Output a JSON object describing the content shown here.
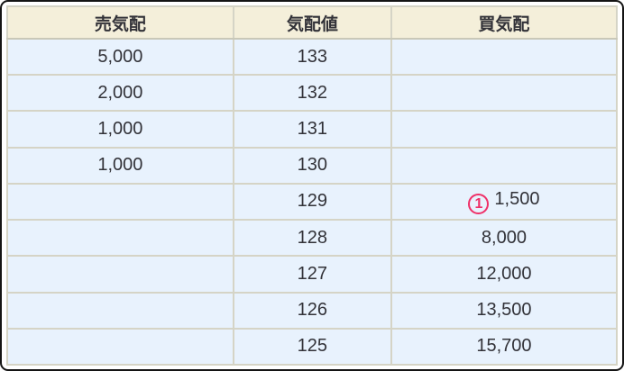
{
  "table": {
    "columns": [
      {
        "id": "sell",
        "label": "売気配"
      },
      {
        "id": "price",
        "label": "気配値"
      },
      {
        "id": "buy",
        "label": "買気配"
      }
    ],
    "rows": [
      {
        "sell": "5,000",
        "price": "133",
        "buy": ""
      },
      {
        "sell": "2,000",
        "price": "132",
        "buy": ""
      },
      {
        "sell": "1,000",
        "price": "131",
        "buy": ""
      },
      {
        "sell": "1,000",
        "price": "130",
        "buy": ""
      },
      {
        "sell": "",
        "price": "129",
        "buy": "1,500",
        "buy_badge": "1"
      },
      {
        "sell": "",
        "price": "128",
        "buy": "8,000"
      },
      {
        "sell": "",
        "price": "127",
        "buy": "12,000"
      },
      {
        "sell": "",
        "price": "126",
        "buy": "13,500"
      },
      {
        "sell": "",
        "price": "125",
        "buy": "15,700"
      }
    ]
  },
  "icons": {
    "circled_number_badge": "pink circle outline containing the digit shown in buy_badge"
  },
  "colors": {
    "header_bg": "#f4efda",
    "row_bg": "#e8f2fd",
    "grid_line": "#d5d4c6",
    "text": "#323238",
    "badge_accent": "#ef3068",
    "outer_border": "#141414"
  }
}
